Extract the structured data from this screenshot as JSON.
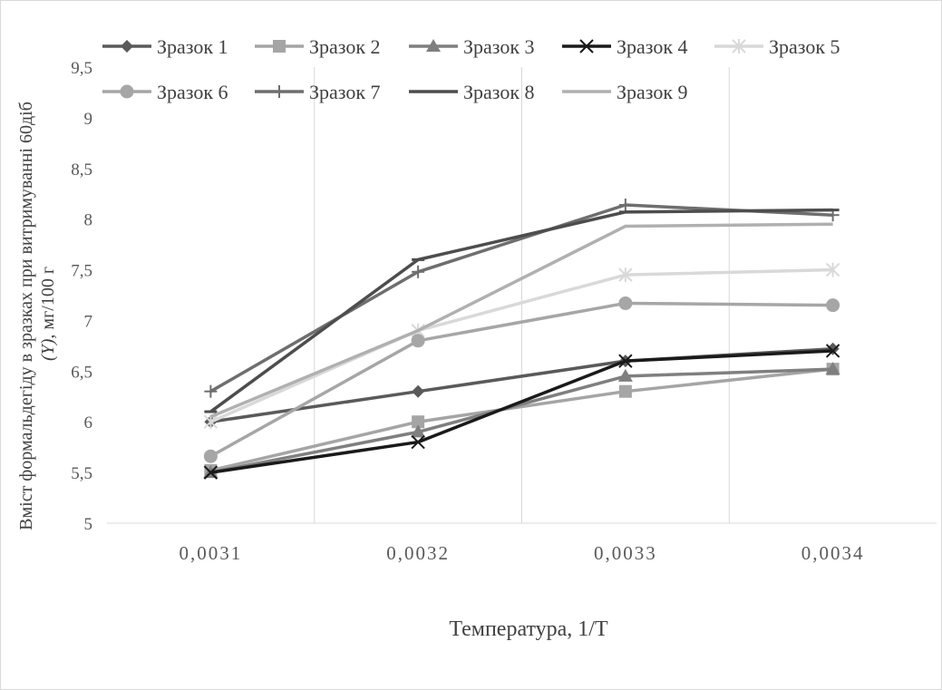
{
  "chart_data": {
    "type": "line",
    "categories": [
      "0,0031",
      "0,0032",
      "0,0033",
      "0,0034"
    ],
    "ylim": [
      5,
      9.5
    ],
    "yticks": [
      "5",
      "5,5",
      "6",
      "6,5",
      "7",
      "7,5",
      "8",
      "8,5",
      "9",
      "9,5"
    ],
    "ylabel_line1": "Вміст формальдегіду в зразках при витримуванні 60діб",
    "ylabel_line2_italic": "(Y)",
    "ylabel_line2_rest": ", мг/100 г",
    "xlabel": "Температура, 1/Т",
    "grid": "vertical",
    "legend_position": "top",
    "series": [
      {
        "name": "Зразок 1",
        "values": [
          6.0,
          6.3,
          6.6,
          6.72
        ],
        "color": "#5a5a5a",
        "marker": "diamond"
      },
      {
        "name": "Зразок 2",
        "values": [
          5.52,
          6.0,
          6.3,
          6.52
        ],
        "color": "#a5a5a5",
        "marker": "square"
      },
      {
        "name": "Зразок 3",
        "values": [
          5.5,
          5.9,
          6.45,
          6.52
        ],
        "color": "#7f7f7f",
        "marker": "triangle"
      },
      {
        "name": "Зразок 4",
        "values": [
          5.5,
          5.8,
          6.6,
          6.7
        ],
        "color": "#1a1a1a",
        "marker": "x"
      },
      {
        "name": "Зразок 5",
        "values": [
          6.0,
          6.9,
          7.45,
          7.5
        ],
        "color": "#d9d9d9",
        "marker": "star"
      },
      {
        "name": "Зразок 6",
        "values": [
          5.66,
          6.8,
          7.17,
          7.15
        ],
        "color": "#a6a6a6",
        "marker": "circle"
      },
      {
        "name": "Зразок 7",
        "values": [
          6.3,
          7.48,
          8.14,
          8.04
        ],
        "color": "#6e6e6e",
        "marker": "plus"
      },
      {
        "name": "Зразок 8",
        "values": [
          6.1,
          7.6,
          8.07,
          8.09
        ],
        "color": "#4d4d4d",
        "marker": "dash"
      },
      {
        "name": "Зразок 9",
        "values": [
          6.05,
          6.9,
          7.93,
          7.95
        ],
        "color": "#b0b0b0",
        "marker": "none"
      }
    ]
  }
}
